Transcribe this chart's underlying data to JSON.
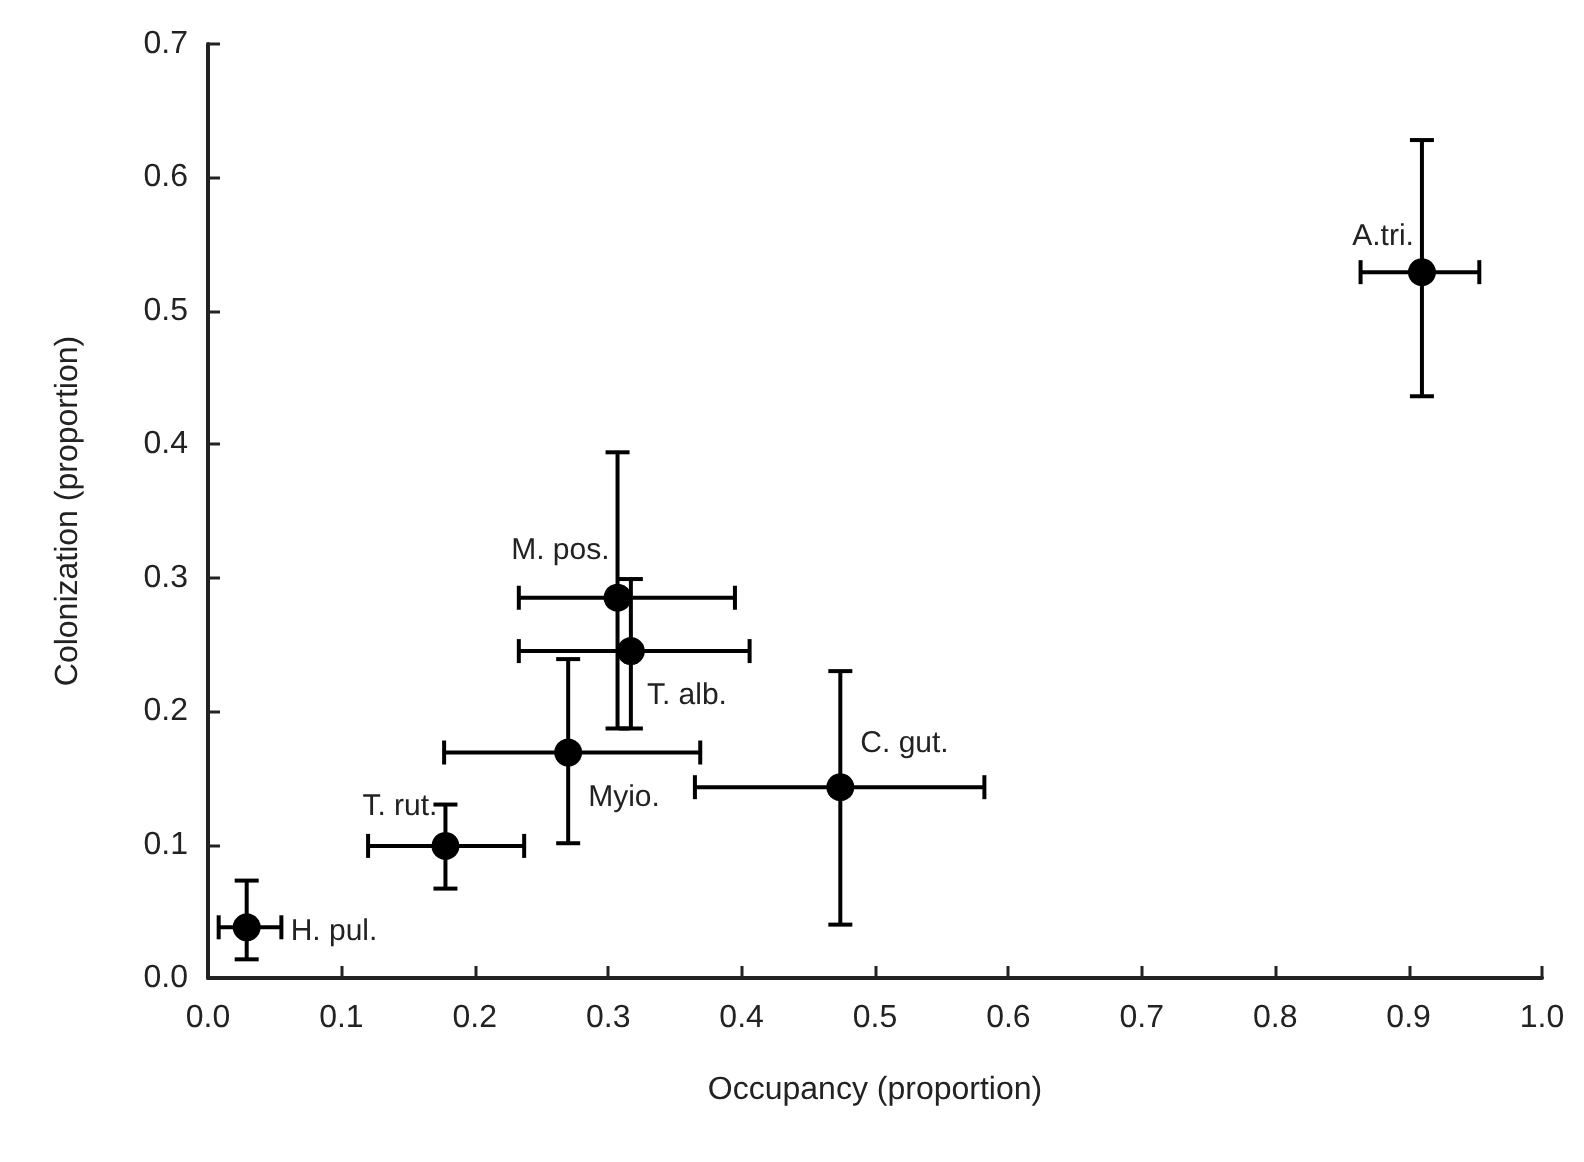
{
  "chart_data": {
    "type": "scatter",
    "xlabel": "Occupancy (proportion)",
    "ylabel": "Colonization (proportion)",
    "x": [
      0.029,
      0.178,
      0.27,
      0.307,
      0.317,
      0.474,
      0.91
    ],
    "series": [
      {
        "color": "#000000",
        "values": [
          0.038,
          0.099,
          0.169,
          0.285,
          0.245,
          0.143,
          0.529
        ],
        "errors": [
          [
            0.014,
            0.073
          ],
          [
            0.067,
            0.13
          ],
          [
            0.101,
            0.239
          ],
          [
            0.187,
            0.394
          ],
          [
            0.187,
            0.299
          ],
          [
            0.04,
            0.23
          ],
          [
            0.436,
            0.628
          ]
        ],
        "xerrors": [
          [
            0.008,
            0.055
          ],
          [
            0.12,
            0.237
          ],
          [
            0.177,
            0.369
          ],
          [
            0.233,
            0.395
          ],
          [
            0.233,
            0.406
          ],
          [
            0.365,
            0.582
          ],
          [
            0.864,
            0.953
          ]
        ]
      }
    ],
    "annotations": [
      {
        "text": "H. pul.",
        "x": 0.029,
        "y": 0.038
      },
      {
        "text": "T. rut.",
        "x": 0.178,
        "y": 0.099
      },
      {
        "text": "Myio.",
        "x": 0.27,
        "y": 0.169
      },
      {
        "text": "M. pos.",
        "x": 0.307,
        "y": 0.285
      },
      {
        "text": "T. alb.",
        "x": 0.317,
        "y": 0.245
      },
      {
        "text": "C. gut.",
        "x": 0.474,
        "y": 0.143
      },
      {
        "text": "A.tri.",
        "x": 0.91,
        "y": 0.529
      }
    ],
    "xlim": [
      0,
      1
    ],
    "xticks": [
      {
        "value": 0,
        "label": "0.0"
      },
      0.1,
      0.2,
      0.3,
      0.4,
      0.5,
      0.6,
      0.7,
      0.8,
      0.9,
      {
        "value": 1,
        "label": "1.0"
      }
    ],
    "ylim": [
      0,
      0.7
    ],
    "yticks": [
      {
        "value": 0,
        "label": "0.0"
      },
      0.1,
      0.2,
      0.3,
      0.4,
      0.5,
      0.6,
      0.7
    ],
    "marker": "circle",
    "grid": false
  }
}
